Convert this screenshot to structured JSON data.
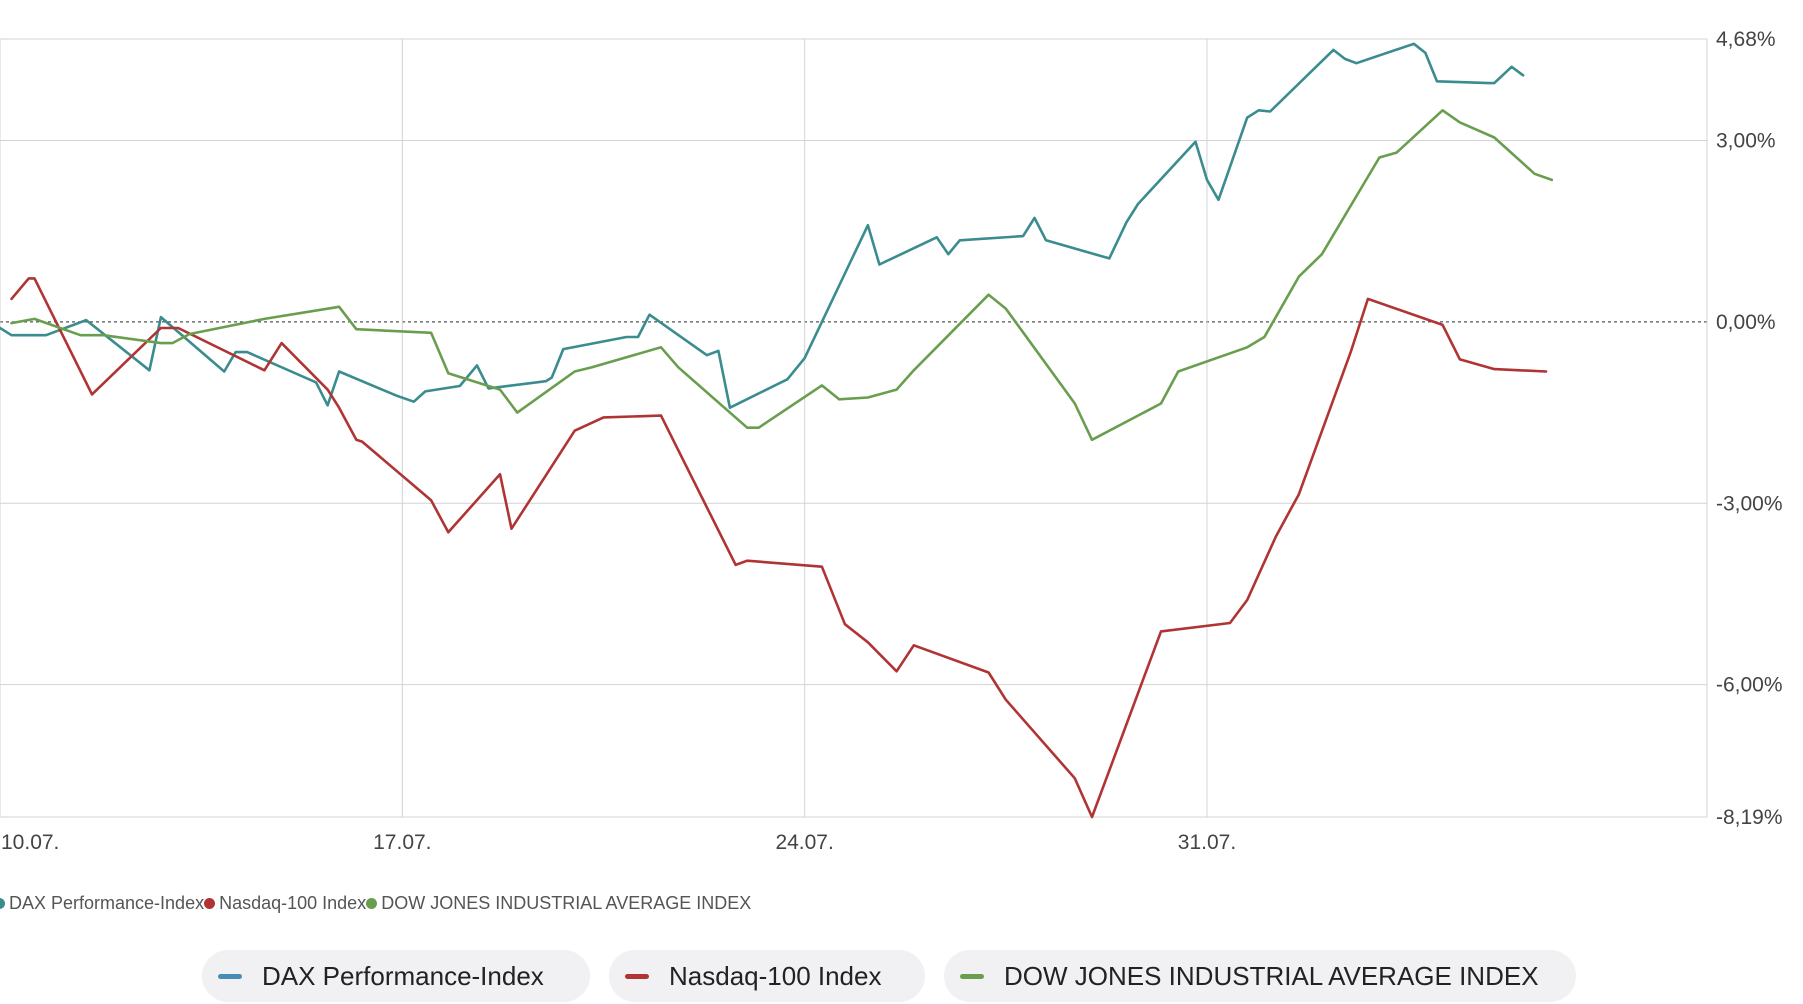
{
  "colors": {
    "dax": "#3a8c8e",
    "nasdaq": "#b03434",
    "dow": "#6a9e4f",
    "dax_legend": "#4a8bb5",
    "grid": "#d3d3d3",
    "zero": "#555555"
  },
  "legend_small": [
    {
      "label": "DAX Performance-Index",
      "color_key": "dax"
    },
    {
      "label": "Nasdaq-100 Index",
      "color_key": "nasdaq"
    },
    {
      "label": "DOW JONES INDUSTRIAL AVERAGE INDEX",
      "color_key": "dow"
    }
  ],
  "legend_buttons": [
    {
      "label": "DAX Performance-Index",
      "color_key": "dax_legend"
    },
    {
      "label": "Nasdaq-100 Index",
      "color_key": "nasdaq"
    },
    {
      "label": "DOW JONES INDUSTRIAL AVERAGE INDEX",
      "color_key": "dow"
    }
  ],
  "chart_data": {
    "type": "line",
    "x_unit": "day",
    "xlim": [
      10.0,
      39.7
    ],
    "ylim": [
      -8.19,
      4.68
    ],
    "y_ticks": [
      {
        "value": 4.68,
        "label": "4,68%"
      },
      {
        "value": 3.0,
        "label": "3,00%"
      },
      {
        "value": 0.0,
        "label": "0,00%"
      },
      {
        "value": -3.0,
        "label": "-3,00%"
      },
      {
        "value": -6.0,
        "label": "-6,00%"
      },
      {
        "value": -8.19,
        "label": "-8,19%"
      }
    ],
    "x_ticks": [
      {
        "value": 10,
        "label": "10.07."
      },
      {
        "value": 17,
        "label": "17.07."
      },
      {
        "value": 24,
        "label": "24.07."
      },
      {
        "value": 31,
        "label": "31.07."
      }
    ],
    "grid": true,
    "zero_line": "dashed",
    "series": [
      {
        "name": "DAX Performance-Index",
        "color_key": "dax",
        "points": [
          [
            10.0,
            -0.1
          ],
          [
            10.2,
            -0.22
          ],
          [
            10.8,
            -0.22
          ],
          [
            11.5,
            0.03
          ],
          [
            12.6,
            -0.8
          ],
          [
            12.8,
            0.08
          ],
          [
            13.9,
            -0.82
          ],
          [
            14.1,
            -0.5
          ],
          [
            14.3,
            -0.5
          ],
          [
            15.5,
            -1.0
          ],
          [
            15.7,
            -1.38
          ],
          [
            15.9,
            -0.82
          ],
          [
            16.9,
            -1.22
          ],
          [
            17.2,
            -1.32
          ],
          [
            17.4,
            -1.15
          ],
          [
            18.0,
            -1.06
          ],
          [
            18.3,
            -0.72
          ],
          [
            18.5,
            -1.1
          ],
          [
            19.5,
            -0.98
          ],
          [
            19.6,
            -0.92
          ],
          [
            19.8,
            -0.45
          ],
          [
            20.9,
            -0.25
          ],
          [
            21.1,
            -0.25
          ],
          [
            21.3,
            0.12
          ],
          [
            22.3,
            -0.55
          ],
          [
            22.5,
            -0.48
          ],
          [
            22.7,
            -1.42
          ],
          [
            23.7,
            -0.95
          ],
          [
            24.0,
            -0.6
          ],
          [
            24.3,
            0.0
          ],
          [
            24.8,
            1.0
          ],
          [
            25.1,
            1.6
          ],
          [
            25.3,
            0.95
          ],
          [
            26.3,
            1.4
          ],
          [
            26.5,
            1.12
          ],
          [
            26.7,
            1.35
          ],
          [
            27.8,
            1.42
          ],
          [
            28.0,
            1.72
          ],
          [
            28.2,
            1.35
          ],
          [
            29.3,
            1.05
          ],
          [
            29.6,
            1.65
          ],
          [
            29.8,
            1.95
          ],
          [
            30.8,
            2.98
          ],
          [
            31.0,
            2.35
          ],
          [
            31.2,
            2.02
          ],
          [
            31.7,
            3.38
          ],
          [
            31.9,
            3.5
          ],
          [
            32.1,
            3.48
          ],
          [
            33.2,
            4.5
          ],
          [
            33.4,
            4.35
          ],
          [
            33.6,
            4.28
          ],
          [
            34.6,
            4.6
          ],
          [
            34.8,
            4.45
          ],
          [
            35.0,
            3.98
          ],
          [
            35.9,
            3.95
          ],
          [
            36.0,
            3.95
          ],
          [
            36.3,
            4.22
          ],
          [
            36.5,
            4.08
          ]
        ]
      },
      {
        "name": "Nasdaq-100 Index",
        "color_key": "nasdaq",
        "points": [
          [
            10.2,
            0.38
          ],
          [
            10.5,
            0.72
          ],
          [
            10.6,
            0.72
          ],
          [
            11.6,
            -1.2
          ],
          [
            12.8,
            -0.1
          ],
          [
            13.1,
            -0.1
          ],
          [
            14.6,
            -0.8
          ],
          [
            14.9,
            -0.35
          ],
          [
            15.7,
            -1.12
          ],
          [
            15.9,
            -1.42
          ],
          [
            16.2,
            -1.95
          ],
          [
            16.3,
            -1.98
          ],
          [
            17.5,
            -2.95
          ],
          [
            17.8,
            -3.48
          ],
          [
            18.7,
            -2.52
          ],
          [
            18.9,
            -3.42
          ],
          [
            20.0,
            -1.8
          ],
          [
            20.5,
            -1.58
          ],
          [
            21.5,
            -1.55
          ],
          [
            21.8,
            -2.12
          ],
          [
            22.8,
            -4.02
          ],
          [
            23.0,
            -3.95
          ],
          [
            24.3,
            -4.05
          ],
          [
            24.7,
            -5.0
          ],
          [
            25.1,
            -5.3
          ],
          [
            25.6,
            -5.78
          ],
          [
            25.9,
            -5.35
          ],
          [
            27.2,
            -5.8
          ],
          [
            27.5,
            -6.25
          ],
          [
            28.7,
            -7.55
          ],
          [
            29.0,
            -8.19
          ],
          [
            30.2,
            -5.12
          ],
          [
            31.4,
            -4.98
          ],
          [
            31.7,
            -4.6
          ],
          [
            32.2,
            -3.55
          ],
          [
            32.6,
            -2.85
          ],
          [
            33.5,
            -0.5
          ],
          [
            33.8,
            0.38
          ],
          [
            35.1,
            -0.05
          ],
          [
            35.4,
            -0.62
          ],
          [
            36.0,
            -0.78
          ],
          [
            36.9,
            -0.82
          ]
        ]
      },
      {
        "name": "DOW JONES INDUSTRIAL AVERAGE INDEX",
        "color_key": "dow",
        "points": [
          [
            10.2,
            -0.02
          ],
          [
            10.6,
            0.05
          ],
          [
            11.4,
            -0.22
          ],
          [
            11.8,
            -0.22
          ],
          [
            12.8,
            -0.35
          ],
          [
            13.0,
            -0.35
          ],
          [
            13.3,
            -0.2
          ],
          [
            14.6,
            0.05
          ],
          [
            15.9,
            0.25
          ],
          [
            16.2,
            -0.12
          ],
          [
            17.5,
            -0.18
          ],
          [
            17.8,
            -0.85
          ],
          [
            18.7,
            -1.12
          ],
          [
            19.0,
            -1.5
          ],
          [
            20.0,
            -0.82
          ],
          [
            20.3,
            -0.75
          ],
          [
            21.5,
            -0.42
          ],
          [
            21.8,
            -0.75
          ],
          [
            23.0,
            -1.75
          ],
          [
            23.2,
            -1.75
          ],
          [
            24.3,
            -1.05
          ],
          [
            24.6,
            -1.28
          ],
          [
            25.1,
            -1.25
          ],
          [
            25.6,
            -1.12
          ],
          [
            25.9,
            -0.8
          ],
          [
            27.2,
            0.45
          ],
          [
            27.5,
            0.22
          ],
          [
            28.7,
            -1.35
          ],
          [
            29.0,
            -1.95
          ],
          [
            30.2,
            -1.35
          ],
          [
            30.5,
            -0.82
          ],
          [
            31.7,
            -0.42
          ],
          [
            32.0,
            -0.25
          ],
          [
            32.6,
            0.75
          ],
          [
            33.0,
            1.12
          ],
          [
            34.0,
            2.72
          ],
          [
            34.3,
            2.8
          ],
          [
            35.1,
            3.5
          ],
          [
            35.4,
            3.3
          ],
          [
            36.0,
            3.05
          ],
          [
            36.7,
            2.45
          ],
          [
            37.0,
            2.35
          ]
        ]
      }
    ]
  }
}
